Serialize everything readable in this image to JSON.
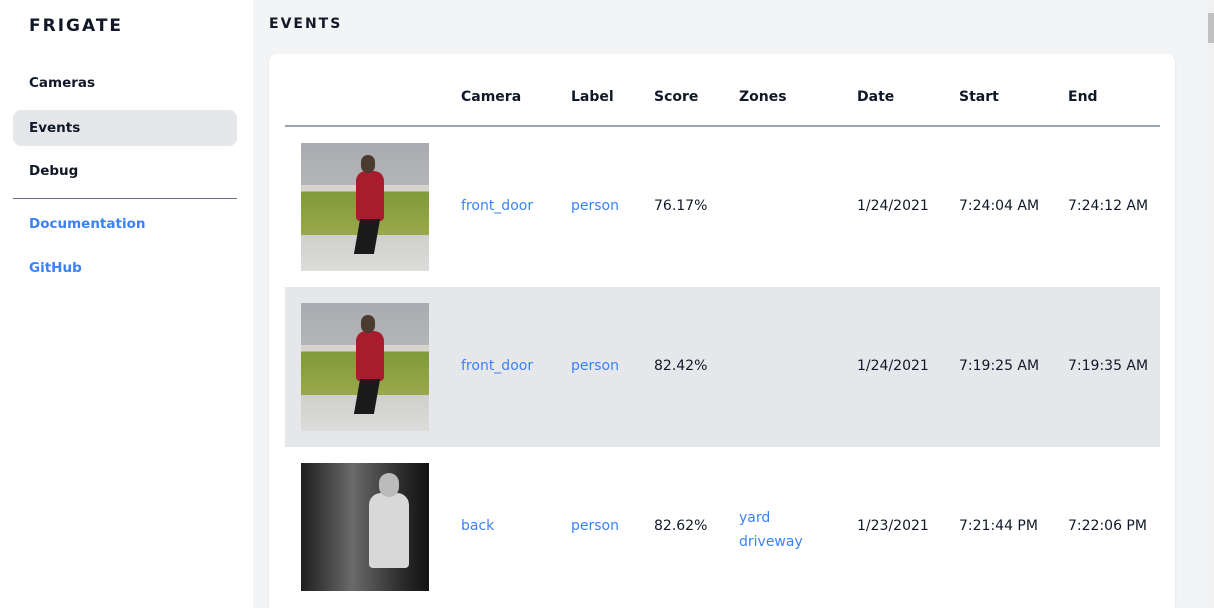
{
  "sidebar": {
    "brand": "FRIGATE",
    "items": [
      {
        "label": "Cameras",
        "active": false
      },
      {
        "label": "Events",
        "active": true
      },
      {
        "label": "Debug",
        "active": false
      }
    ],
    "links": [
      {
        "label": "Documentation"
      },
      {
        "label": "GitHub"
      }
    ]
  },
  "page": {
    "title": "EVENTS"
  },
  "table": {
    "headers": [
      "Camera",
      "Label",
      "Score",
      "Zones",
      "Date",
      "Start",
      "End"
    ],
    "rows": [
      {
        "thumbnail": "person walking dog, daytime",
        "camera": "front_door",
        "label": "person",
        "score": "76.17%",
        "zones": [
          "",
          ""
        ],
        "date": "1/24/2021",
        "start": "7:24:04 AM",
        "end": "7:24:12 AM"
      },
      {
        "thumbnail": "person walking dog, daytime",
        "camera": "front_door",
        "label": "person",
        "score": "82.42%",
        "zones": [
          "",
          ""
        ],
        "date": "1/24/2021",
        "start": "7:19:25 AM",
        "end": "7:19:35 AM"
      },
      {
        "thumbnail": "person at night, grayscale",
        "camera": "back",
        "label": "person",
        "score": "82.62%",
        "zones": [
          "yard",
          "driveway"
        ],
        "date": "1/23/2021",
        "start": "7:21:44 PM",
        "end": "7:22:06 PM"
      }
    ]
  },
  "colors": {
    "accent": "#3b82f6",
    "active_bg": "#e5e7eb",
    "page_bg": "#f3f4f6"
  }
}
